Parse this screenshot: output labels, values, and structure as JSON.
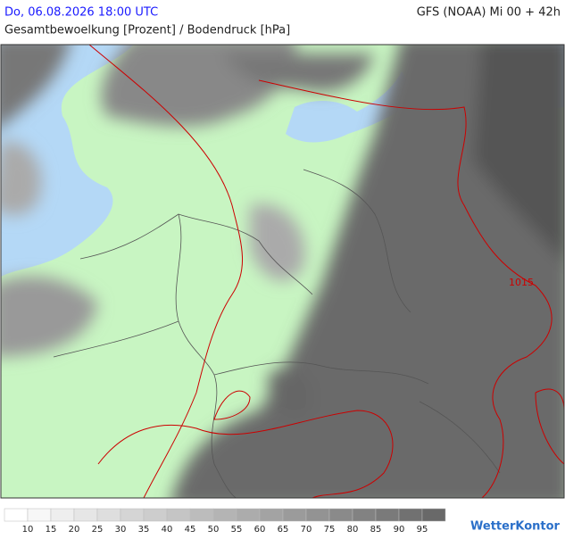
{
  "header": {
    "datetime": "Do, 06.08.2026 18:00 UTC",
    "model": "GFS (NOAA) Mi 00 + 42h",
    "title": "Gesamtbewoelkung [Prozent] / Bodendruck [hPa]"
  },
  "map": {
    "isobar_label": "1015"
  },
  "legend": {
    "ticks": [
      10,
      15,
      20,
      25,
      30,
      35,
      40,
      45,
      50,
      55,
      60,
      65,
      70,
      75,
      80,
      85,
      90,
      95
    ]
  },
  "brand": "WetterKontor"
}
